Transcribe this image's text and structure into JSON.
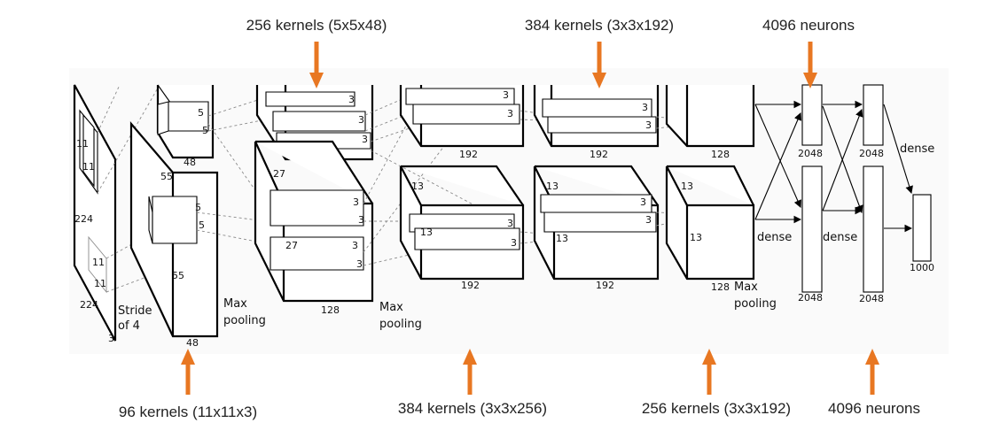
{
  "annotations": {
    "top_conv2": "256 kernels (5x5x48)",
    "top_conv4": "384 kernels (3x3x192)",
    "top_fc1": "4096 neurons",
    "bottom_conv1": "96 kernels (11x11x3)",
    "bottom_conv3": "384 kernels (3x3x256)",
    "bottom_conv5": "256 kernels (3x3x192)",
    "bottom_fc2": "4096 neurons"
  },
  "arrow_color": "#e87722",
  "input": {
    "size_h": "224",
    "size_w": "224",
    "depth": "3",
    "kernel_h": "11",
    "kernel_w": "11",
    "kernel2_h": "11",
    "kernel2_w": "11",
    "stride_line1": "Stride",
    "stride_line2": "of 4"
  },
  "conv1": {
    "size": "55",
    "size2": "55",
    "depth_top": "48",
    "depth_bottom": "48",
    "kernel_top_h": "5",
    "kernel_top_w": "5",
    "kernel_bot_h": "5",
    "kernel_bot_w": "5",
    "pool_line1": "Max",
    "pool_line2": "pooling"
  },
  "conv2": {
    "size": "27",
    "size2": "27",
    "depth_top": "128",
    "depth_bottom": "128",
    "k": "3",
    "pool_line1": "Max",
    "pool_line2": "pooling"
  },
  "conv3": {
    "size": "13",
    "size2": "13",
    "depth_top": "192",
    "depth_bottom": "192",
    "k": "3"
  },
  "conv4": {
    "size": "13",
    "size2": "13",
    "depth_top": "192",
    "depth_bottom": "192",
    "k": "3"
  },
  "conv5": {
    "size": "13",
    "size2": "13",
    "depth_top": "128",
    "depth_bottom": "128",
    "pool_line1": "Max",
    "pool_line2": "pooling"
  },
  "fc": {
    "fc1_top": "2048",
    "fc1_bottom": "2048",
    "fc2_top": "2048",
    "fc2_bottom": "2048",
    "dense1": "dense",
    "dense2": "dense",
    "dense3": "dense",
    "output": "1000"
  }
}
